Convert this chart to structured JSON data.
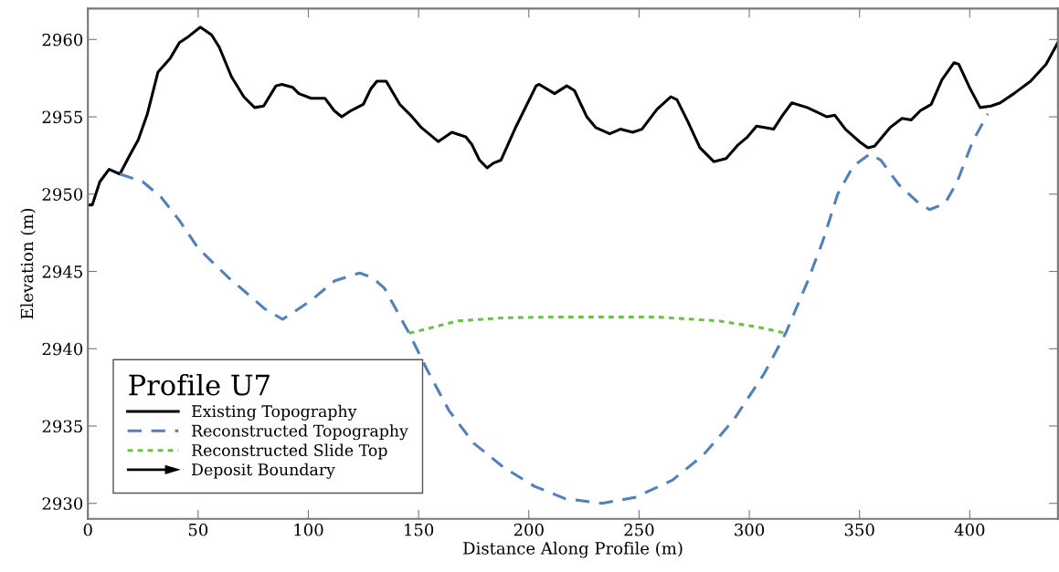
{
  "chart_data": {
    "type": "line",
    "xlabel": "Distance Along Profile (m)",
    "ylabel": "Elevation (m)",
    "legend_title": "Profile U7",
    "xlim": [
      0,
      440
    ],
    "ylim": [
      2929,
      2962
    ],
    "xticks": [
      0,
      50,
      100,
      150,
      200,
      250,
      300,
      350,
      400
    ],
    "yticks": [
      2930,
      2935,
      2940,
      2945,
      2950,
      2955,
      2960
    ],
    "grid": false,
    "legend": "bottom left",
    "series": [
      {
        "name": "Existing Topography",
        "color": "#000000",
        "line_style": "solid",
        "x": [
          0,
          2,
          5.4,
          9.6,
          14.5,
          19.3,
          22.8,
          27,
          31.8,
          37.4,
          41.5,
          45.7,
          51,
          56.1,
          59.6,
          65.1,
          70.7,
          75.6,
          79.7,
          85.3,
          88,
          92.9,
          95.7,
          101.3,
          107.5,
          111.7,
          115.1,
          119.3,
          124.9,
          128.3,
          131.1,
          135.3,
          141.5,
          146.4,
          151.3,
          158.9,
          165.1,
          171.4,
          174.2,
          177.6,
          181.1,
          183.9,
          187.4,
          194.3,
          203.3,
          204.7,
          211.7,
          217.2,
          220.7,
          226.3,
          230.4,
          236.7,
          241.5,
          247.1,
          251.3,
          258.2,
          264.4,
          267.2,
          272.1,
          277.6,
          283.9,
          289.5,
          295,
          299.2,
          303.3,
          311,
          315.1,
          319.3,
          326.3,
          335.3,
          338.8,
          343.6,
          349.9,
          353.8,
          356.8,
          363.8,
          369.3,
          373.5,
          377.6,
          382.5,
          387.4,
          392.9,
          395,
          399.9,
          404.7,
          409.6,
          413.8,
          420,
          427.6,
          434.6,
          440
        ],
        "values": [
          2949.3,
          2949.3,
          2950.8,
          2951.6,
          2951.3,
          2952.6,
          2953.5,
          2955.2,
          2957.9,
          2958.8,
          2959.8,
          2960.2,
          2960.8,
          2960.3,
          2959.5,
          2957.6,
          2956.3,
          2955.6,
          2955.7,
          2957,
          2957.1,
          2956.9,
          2956.5,
          2956.2,
          2956.2,
          2955.4,
          2955,
          2955.4,
          2955.8,
          2956.8,
          2957.3,
          2957.3,
          2955.8,
          2955.1,
          2954.3,
          2953.4,
          2954,
          2953.7,
          2953.2,
          2952.2,
          2951.7,
          2952,
          2952.2,
          2954.4,
          2957,
          2957.1,
          2956.5,
          2957,
          2956.7,
          2955,
          2954.3,
          2953.9,
          2954.2,
          2954,
          2954.2,
          2955.5,
          2956.3,
          2956.1,
          2954.7,
          2953,
          2952.1,
          2952.3,
          2953.2,
          2953.7,
          2954.4,
          2954.2,
          2955.1,
          2955.9,
          2955.6,
          2955,
          2955.1,
          2954.2,
          2953.4,
          2953,
          2953.1,
          2954.3,
          2954.9,
          2954.8,
          2955.4,
          2955.8,
          2957.4,
          2958.5,
          2958.4,
          2956.9,
          2955.6,
          2955.7,
          2955.9,
          2956.5,
          2957.3,
          2958.4,
          2959.8
        ]
      },
      {
        "name": "Reconstructed Topography",
        "color": "#5080bd",
        "line_style": "dashed",
        "x": [
          14.5,
          24.9,
          33.2,
          41.5,
          50,
          63.8,
          72,
          80,
          88.3,
          101,
          112,
          123.3,
          129,
          134.6,
          145.7,
          154,
          163.8,
          174.9,
          188.8,
          202.6,
          216.5,
          233.2,
          248.5,
          265.1,
          279,
          292.9,
          306.8,
          316.5,
          326.3,
          333.2,
          340.1,
          347.1,
          354.7,
          359.6,
          367.9,
          376.3,
          381.8,
          388.8,
          394.3,
          401.3,
          408.2
        ],
        "values": [
          2951.3,
          2950.8,
          2949.8,
          2948.3,
          2946.5,
          2944.6,
          2943.6,
          2942.6,
          2941.9,
          2943.1,
          2944.4,
          2944.9,
          2944.6,
          2943.9,
          2941,
          2938.6,
          2936,
          2933.9,
          2932.3,
          2931.1,
          2930.3,
          2930,
          2930.4,
          2931.5,
          2933.1,
          2935.4,
          2938.4,
          2941,
          2944.3,
          2946.9,
          2950,
          2951.8,
          2952.6,
          2952.2,
          2950.6,
          2949.5,
          2949,
          2949.4,
          2950.8,
          2953.4,
          2955.2
        ]
      },
      {
        "name": "Reconstructed Slide Top",
        "color": "#6cc04a",
        "line_style": "dotted",
        "x": [
          145.7,
          167.9,
          188.8,
          210,
          230.4,
          258.2,
          286,
          304,
          316.5
        ],
        "values": [
          2941,
          2941.8,
          2942,
          2942.05,
          2942.05,
          2942.05,
          2941.8,
          2941.4,
          2941
        ]
      },
      {
        "name": "Deposit Boundary",
        "type": "other",
        "color": "#000000"
      }
    ]
  }
}
